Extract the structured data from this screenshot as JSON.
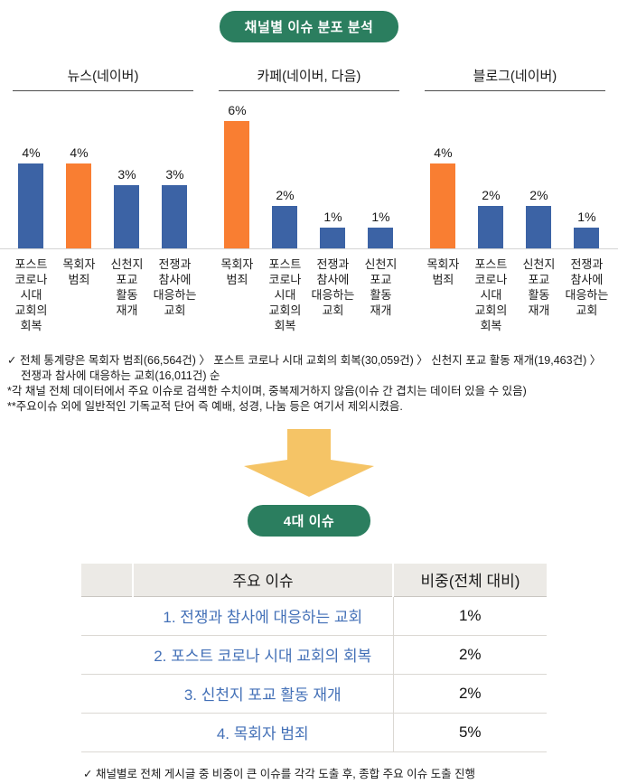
{
  "title_badge": "채널별 이슈 분포 분석",
  "section_badge": "4대 이슈",
  "colors": {
    "badge_green": "#2B7E5F",
    "bar_blue": "#3C63A5",
    "bar_orange": "#F97E32",
    "arrow_yellow": "#F5C466",
    "issue_text_blue": "#4370B7",
    "table_header_bg": "#ECEAE6"
  },
  "chart_data": [
    {
      "type": "bar",
      "title": "뉴스(네이버)",
      "categories": [
        "포스트\n코로나\n시대\n교회의\n회복",
        "목회자\n범죄",
        "신천지\n포교\n활동\n재개",
        "전쟁과\n참사에\n대응하는\n교회"
      ],
      "values": [
        4,
        4,
        3,
        3
      ],
      "value_labels": [
        "4%",
        "4%",
        "3%",
        "3%"
      ],
      "bar_colors": [
        "blue",
        "orange",
        "blue",
        "blue"
      ],
      "ylim": [
        0,
        7
      ],
      "unit": "%"
    },
    {
      "type": "bar",
      "title": "카페(네이버, 다음)",
      "categories": [
        "목회자\n범죄",
        "포스트\n코로나\n시대\n교회의\n회복",
        "전쟁과\n참사에\n대응하는\n교회",
        "신천지\n포교\n활동\n재개"
      ],
      "values": [
        6,
        2,
        1,
        1
      ],
      "value_labels": [
        "6%",
        "2%",
        "1%",
        "1%"
      ],
      "bar_colors": [
        "orange",
        "blue",
        "blue",
        "blue"
      ],
      "ylim": [
        0,
        7
      ],
      "unit": "%"
    },
    {
      "type": "bar",
      "title": "블로그(네이버)",
      "categories": [
        "목회자\n범죄",
        "포스트\n코로나\n시대\n교회의\n회복",
        "신천지\n포교\n활동\n재개",
        "전쟁과\n참사에\n대응하는\n교회"
      ],
      "values": [
        4,
        2,
        2,
        1
      ],
      "value_labels": [
        "4%",
        "2%",
        "2%",
        "1%"
      ],
      "bar_colors": [
        "orange",
        "blue",
        "blue",
        "blue"
      ],
      "ylim": [
        0,
        7
      ],
      "unit": "%"
    }
  ],
  "footnotes": [
    "✓ 전체 통계량은 목회자 범죄(66,564건) 〉 포스트 코로나 시대 교회의 회복(30,059건) 〉 신천지 포교 활동 재개(19,463건) 〉 전쟁과 참사에 대응하는 교회(16,011건) 순",
    "*각 채널 전체 데이터에서 주요 이슈로 검색한 수치이며, 중복제거하지 않음(이슈 간 겹치는 데이터 있을 수 있음)",
    "**주요이슈 외에 일반적인 기독교적 단어 즉 예배, 성경, 나눔 등은 여기서 제외시켰음."
  ],
  "table": {
    "headers": [
      "",
      "주요 이슈",
      "비중(전체 대비)"
    ],
    "rows": [
      {
        "issue": "1. 전쟁과 참사에 대응하는 교회",
        "share": "1%"
      },
      {
        "issue": "2. 포스트 코로나 시대 교회의 회복",
        "share": "2%"
      },
      {
        "issue": "3. 신천지 포교 활동 재개",
        "share": "2%"
      },
      {
        "issue": "4. 목회자 범죄",
        "share": "5%"
      }
    ]
  },
  "bottom_note": "✓ 채널별로 전체 게시글 중 비중이 큰 이슈를 각각 도출 후, 종합 주요 이슈 도출 진행"
}
